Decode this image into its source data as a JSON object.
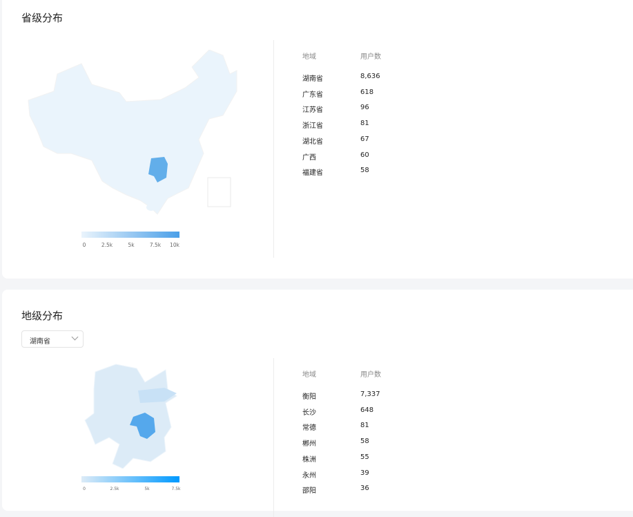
{
  "province_section": {
    "title": "省级分布",
    "table_headers": {
      "region": "地域",
      "users": "用户数"
    },
    "rows": [
      {
        "region": "湖南省",
        "users": "8,636"
      },
      {
        "region": "广东省",
        "users": "618"
      },
      {
        "region": "江苏省",
        "users": "96"
      },
      {
        "region": "浙江省",
        "users": "81"
      },
      {
        "region": "湖北省",
        "users": "67"
      },
      {
        "region": "广西",
        "users": "60"
      },
      {
        "region": "福建省",
        "users": "58"
      }
    ],
    "legend_ticks": [
      "0",
      "2.5k",
      "5k",
      "7.5k",
      "10k"
    ],
    "colors": {
      "low": "#eaf4fc",
      "high": "#4a9fe8",
      "highlight": "#62aeea"
    }
  },
  "city_section": {
    "title": "地级分布",
    "province_select": "湖南省",
    "table_headers": {
      "region": "地域",
      "users": "用户数"
    },
    "rows": [
      {
        "region": "衡阳",
        "users": "7,337"
      },
      {
        "region": "长沙",
        "users": "648"
      },
      {
        "region": "常德",
        "users": "81"
      },
      {
        "region": "郴州",
        "users": "58"
      },
      {
        "region": "株洲",
        "users": "55"
      },
      {
        "region": "永州",
        "users": "39"
      },
      {
        "region": "邵阳",
        "users": "36"
      }
    ],
    "legend_ticks": [
      "0",
      "2.5k",
      "5k",
      "7.5k"
    ],
    "colors": {
      "low": "#dcebf7",
      "high": "#0099ff",
      "highlight": "#55a8ec"
    }
  }
}
